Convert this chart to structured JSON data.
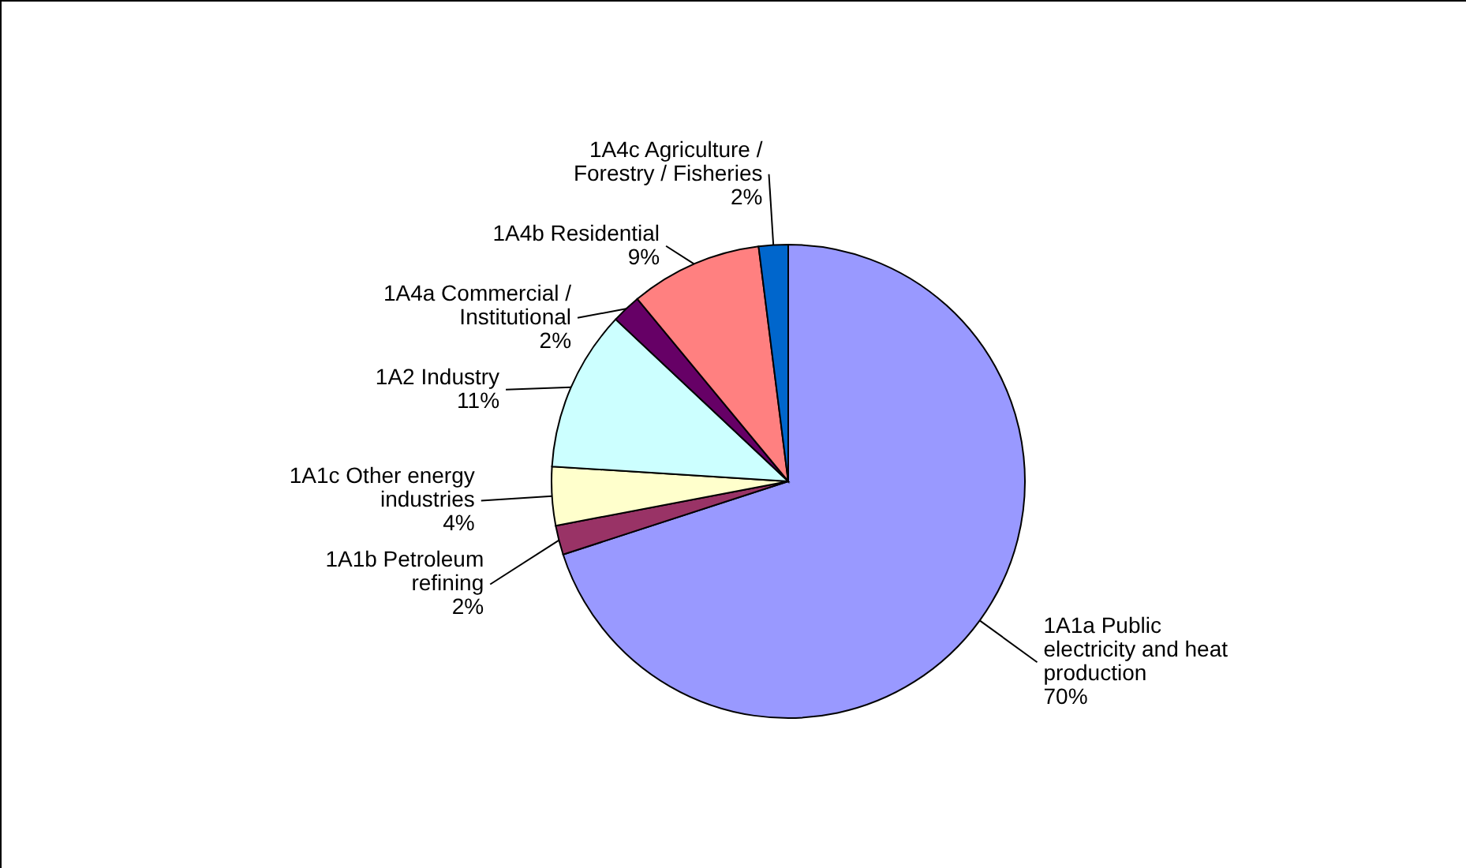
{
  "chart_data": {
    "type": "pie",
    "categories": [
      "1A1a Public electricity and heat production",
      "1A1b Petroleum refining",
      "1A1c Other energy industries",
      "1A2 Industry",
      "1A4a Commercial / Institutional",
      "1A4b Residential",
      "1A4c Agriculture / Forestry / Fisheries"
    ],
    "values": [
      70,
      2,
      4,
      11,
      2,
      9,
      2
    ],
    "value_labels": [
      "70%",
      "2%",
      "4%",
      "11%",
      "2%",
      "9%",
      "2%"
    ],
    "colors": [
      "#9999ff",
      "#993366",
      "#ffffcc",
      "#ccffff",
      "#660066",
      "#ff8080",
      "#0066cc"
    ]
  }
}
